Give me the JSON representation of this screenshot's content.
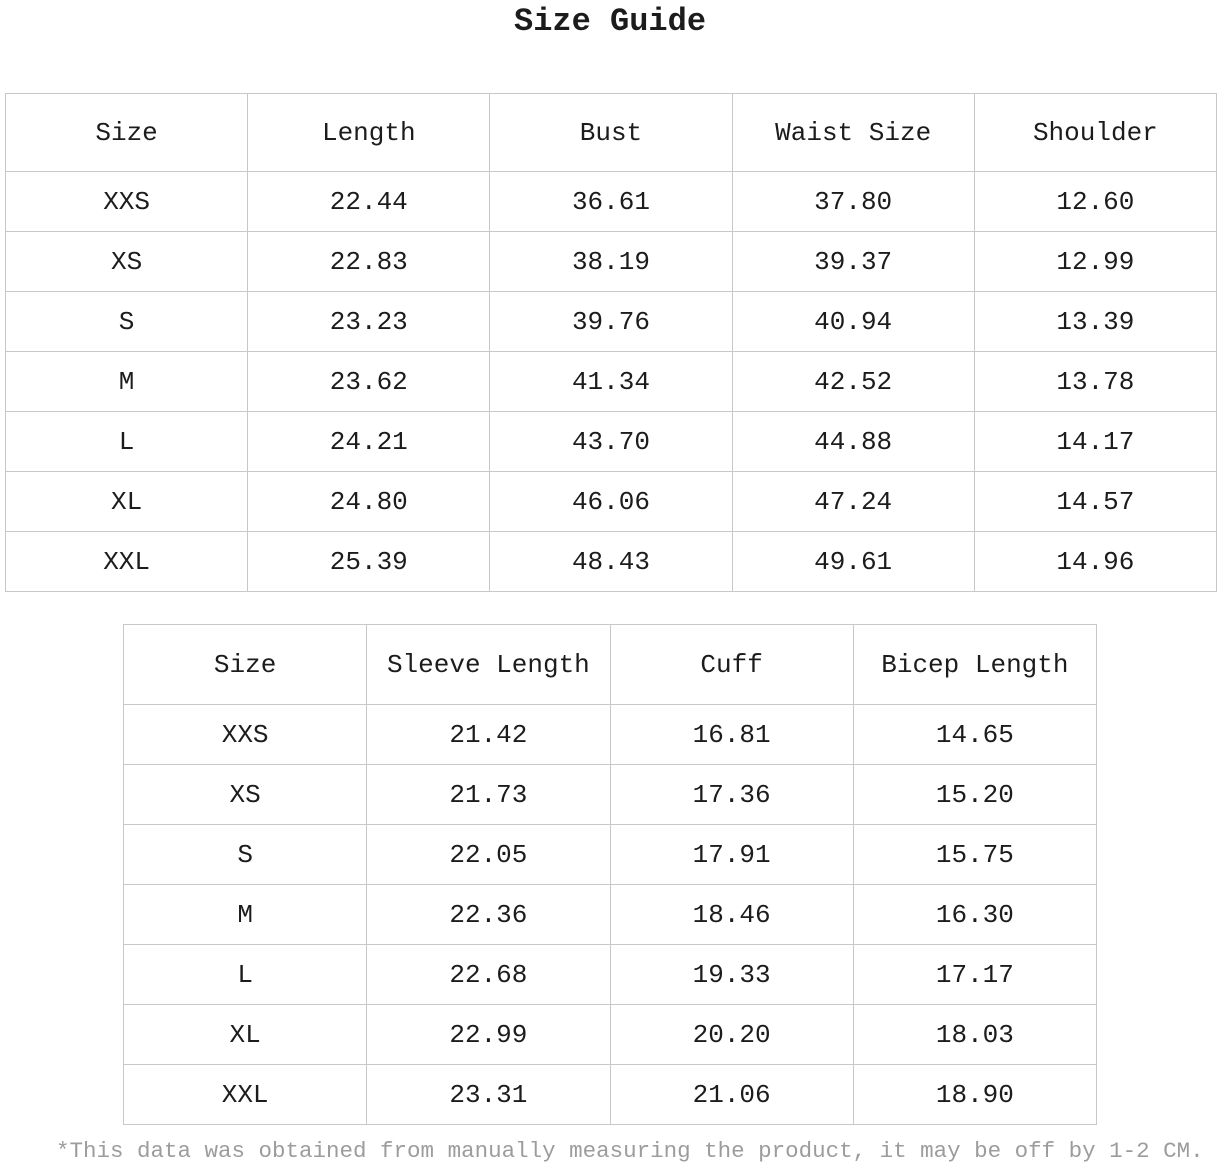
{
  "title": "Size Guide",
  "table1": {
    "headers": [
      "Size",
      "Length",
      "Bust",
      "Waist Size",
      "Shoulder"
    ],
    "rows": [
      [
        "XXS",
        "22.44",
        "36.61",
        "37.80",
        "12.60"
      ],
      [
        "XS",
        "22.83",
        "38.19",
        "39.37",
        "12.99"
      ],
      [
        "S",
        "23.23",
        "39.76",
        "40.94",
        "13.39"
      ],
      [
        "M",
        "23.62",
        "41.34",
        "42.52",
        "13.78"
      ],
      [
        "L",
        "24.21",
        "43.70",
        "44.88",
        "14.17"
      ],
      [
        "XL",
        "24.80",
        "46.06",
        "47.24",
        "14.57"
      ],
      [
        "XXL",
        "25.39",
        "48.43",
        "49.61",
        "14.96"
      ]
    ]
  },
  "table2": {
    "headers": [
      "Size",
      "Sleeve Length",
      "Cuff",
      "Bicep Length"
    ],
    "rows": [
      [
        "XXS",
        "21.42",
        "16.81",
        "14.65"
      ],
      [
        "XS",
        "21.73",
        "17.36",
        "15.20"
      ],
      [
        "S",
        "22.05",
        "17.91",
        "15.75"
      ],
      [
        "M",
        "22.36",
        "18.46",
        "16.30"
      ],
      [
        "L",
        "22.68",
        "19.33",
        "17.17"
      ],
      [
        "XL",
        "22.99",
        "20.20",
        "18.03"
      ],
      [
        "XXL",
        "23.31",
        "21.06",
        "18.90"
      ]
    ]
  },
  "footnote": "*This data was obtained from manually measuring the product, it may be off by 1-2 CM.",
  "colors": {
    "text": "#1c1c1c",
    "border": "#c8c8c8",
    "footnote_text": "#9c9c9c",
    "background": "#ffffff"
  }
}
